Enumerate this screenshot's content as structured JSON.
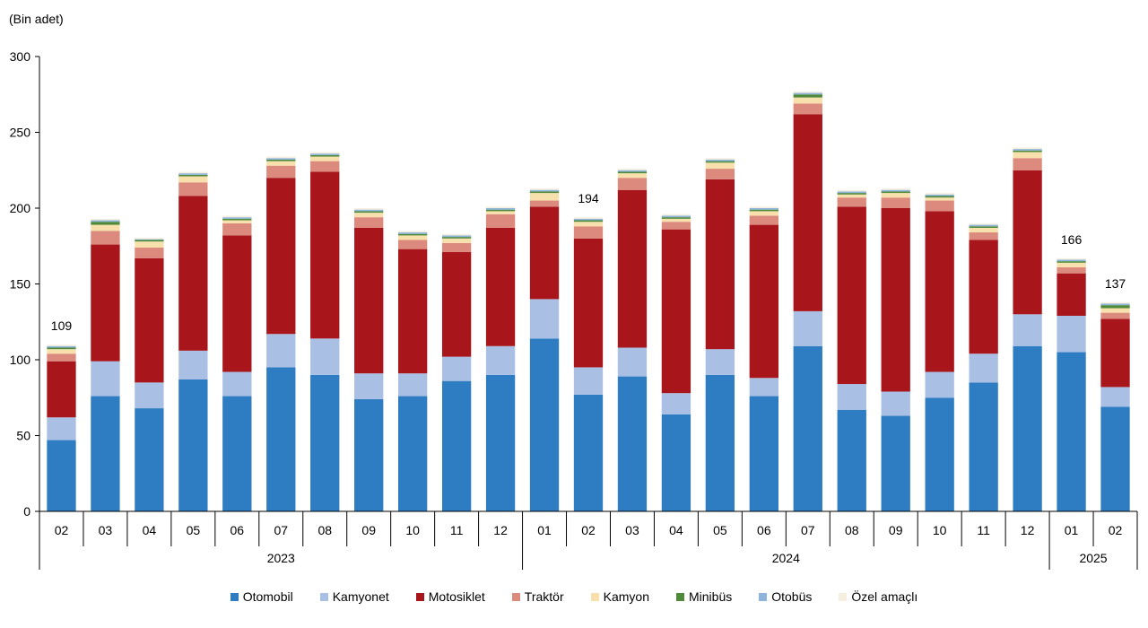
{
  "chart_data": {
    "type": "bar",
    "stacked": true,
    "unit_label": "(Bin adet)",
    "ylim": [
      0,
      300
    ],
    "yticks": [
      "0",
      "50",
      "100",
      "150",
      "200",
      "250",
      "300"
    ],
    "categories": [
      "02",
      "03",
      "04",
      "05",
      "06",
      "07",
      "08",
      "09",
      "10",
      "11",
      "12",
      "01",
      "02",
      "03",
      "04",
      "05",
      "06",
      "07",
      "08",
      "09",
      "10",
      "11",
      "12",
      "01",
      "02"
    ],
    "year_groups": [
      {
        "label": "2023",
        "start": 0,
        "end": 10
      },
      {
        "label": "2024",
        "start": 11,
        "end": 22
      },
      {
        "label": "2025",
        "start": 23,
        "end": 24
      }
    ],
    "series": [
      {
        "name": "Otomobil",
        "color": "#2e7cc2",
        "values": [
          47,
          76,
          68,
          87,
          76,
          95,
          90,
          74,
          76,
          86,
          90,
          114,
          77,
          89,
          64,
          90,
          76,
          109,
          67,
          63,
          75,
          85,
          109,
          105,
          69
        ]
      },
      {
        "name": "Kamyonet",
        "color": "#a9bfe4",
        "values": [
          15,
          23,
          17,
          19,
          16,
          22,
          24,
          17,
          15,
          16,
          19,
          26,
          18,
          19,
          14,
          17,
          12,
          23,
          17,
          16,
          17,
          19,
          21,
          24,
          13
        ]
      },
      {
        "name": "Motosiklet",
        "color": "#a8161b",
        "values": [
          37,
          77,
          82,
          102,
          90,
          103,
          110,
          96,
          82,
          69,
          78,
          61,
          85,
          104,
          108,
          112,
          101,
          130,
          117,
          121,
          106,
          75,
          95,
          28,
          45
        ]
      },
      {
        "name": "Traktör",
        "color": "#dd8a7e",
        "values": [
          5,
          9,
          7,
          9,
          8,
          8,
          7,
          7,
          6,
          6,
          9,
          4,
          8,
          8,
          5,
          7,
          6,
          7,
          6,
          7,
          7,
          5,
          8,
          4,
          4
        ]
      },
      {
        "name": "Kamyon",
        "color": "#f8e0ac",
        "values": [
          3,
          4,
          4,
          4,
          2,
          3,
          3,
          3,
          3,
          3,
          2,
          5,
          3,
          3,
          2,
          4,
          3,
          4,
          2,
          3,
          2,
          3,
          4,
          3,
          3
        ]
      },
      {
        "name": "Minibüs",
        "color": "#4e8a3a",
        "values": [
          1,
          2,
          1,
          1,
          1,
          1,
          1,
          1,
          1,
          1,
          1,
          1,
          1,
          1,
          1,
          1,
          1,
          2,
          1,
          1,
          1,
          1,
          1,
          1,
          2
        ]
      },
      {
        "name": "Otobüs",
        "color": "#8eb4dc",
        "values": [
          1,
          1,
          0.5,
          1,
          1,
          1,
          1,
          1,
          1,
          1,
          1,
          1,
          1,
          1,
          1,
          1,
          1,
          1,
          1,
          1,
          1,
          1,
          1,
          1,
          1
        ]
      },
      {
        "name": "Özel amaçlı",
        "color": "#f4efdf",
        "values": [
          1,
          1,
          1,
          1,
          1,
          1,
          1,
          1,
          1,
          1,
          1,
          1,
          1,
          1,
          1,
          1,
          1,
          1,
          1,
          1,
          1,
          1,
          1,
          1,
          1
        ]
      }
    ],
    "data_labels": [
      {
        "index": 0,
        "text": "109"
      },
      {
        "index": 12,
        "text": "194"
      },
      {
        "index": 23,
        "text": "166"
      },
      {
        "index": 24,
        "text": "137"
      }
    ],
    "legend_position": "bottom",
    "grid": false
  }
}
